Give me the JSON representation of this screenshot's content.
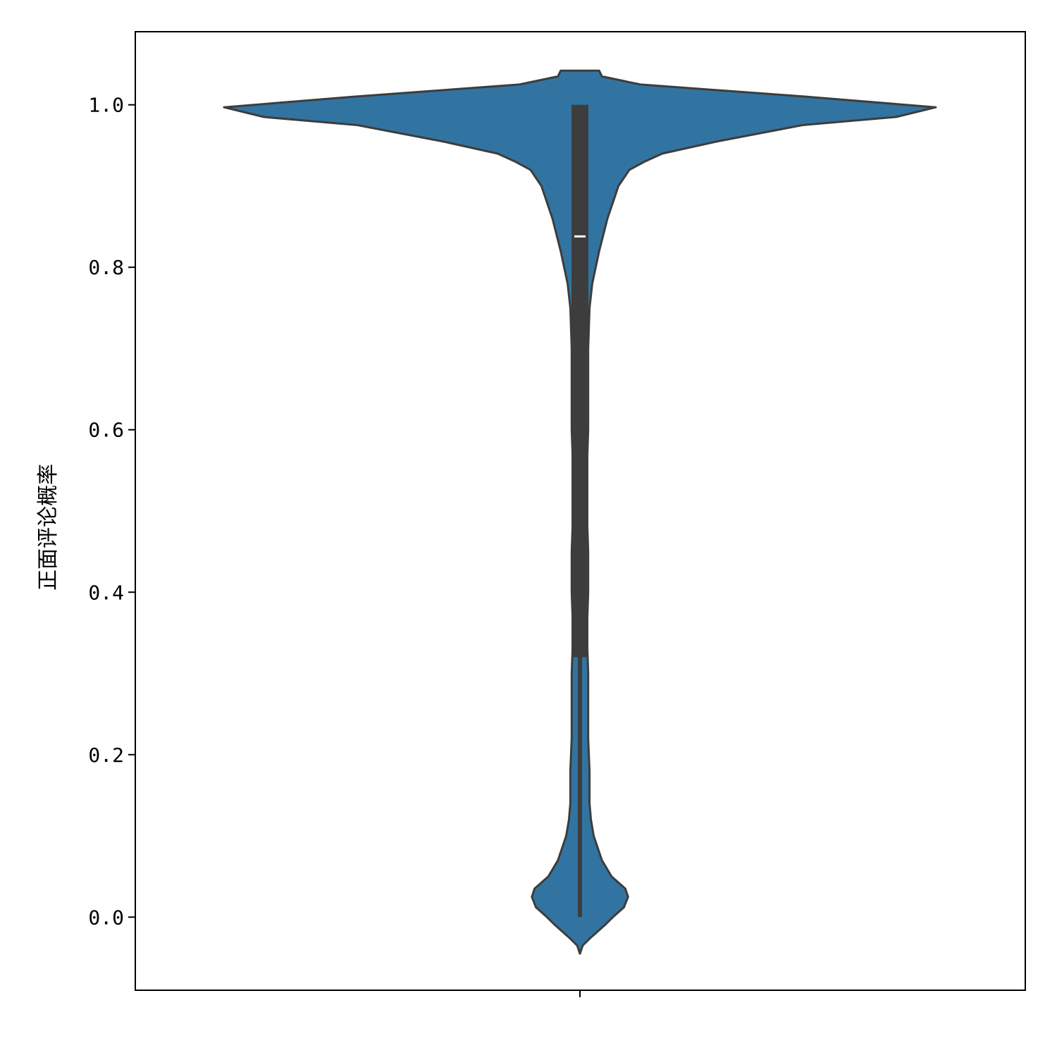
{
  "chart_data": {
    "type": "violin",
    "title": "",
    "xlabel": "",
    "ylabel": "正面评论概率",
    "ylim": [
      -0.09,
      1.09
    ],
    "yticks": [
      0.0,
      0.2,
      0.4,
      0.6,
      0.8,
      1.0
    ],
    "ytick_labels": [
      "0.0",
      "0.2",
      "0.4",
      "0.6",
      "0.8",
      "1.0"
    ],
    "xticks": [
      ""
    ],
    "grid": false,
    "colors": {
      "violin_fill": "#3274a1",
      "outline": "#3d3d3d",
      "box": "#3d3d3d",
      "median": "#ffffff",
      "axis": "#000000"
    },
    "density": {
      "y": [
        -0.045,
        -0.035,
        -0.025,
        -0.01,
        0.0,
        0.012,
        0.025,
        0.035,
        0.05,
        0.07,
        0.1,
        0.12,
        0.14,
        0.18,
        0.22,
        0.26,
        0.3,
        0.35,
        0.4,
        0.45,
        0.5,
        0.55,
        0.6,
        0.65,
        0.7,
        0.75,
        0.78,
        0.82,
        0.86,
        0.9,
        0.92,
        0.93,
        0.94,
        0.955,
        0.975,
        0.985,
        0.997,
        1.01,
        1.025,
        1.035,
        1.042
      ],
      "half_width": [
        0.0,
        0.02,
        0.08,
        0.18,
        0.24,
        0.32,
        0.35,
        0.33,
        0.23,
        0.16,
        0.1,
        0.08,
        0.07,
        0.07,
        0.06,
        0.06,
        0.06,
        0.05,
        0.06,
        0.06,
        0.05,
        0.05,
        0.06,
        0.06,
        0.06,
        0.07,
        0.09,
        0.14,
        0.2,
        0.28,
        0.36,
        0.47,
        0.6,
        1.0,
        1.62,
        2.3,
        2.59,
        1.65,
        0.44,
        0.16,
        0.14
      ]
    },
    "box": {
      "whisker_low": 0.0,
      "q1": 0.32,
      "median": 0.838,
      "q3": 1.0,
      "whisker_high": 1.0
    }
  }
}
